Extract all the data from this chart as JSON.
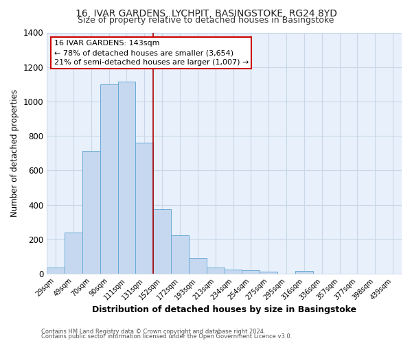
{
  "title": "16, IVAR GARDENS, LYCHPIT, BASINGSTOKE, RG24 8YD",
  "subtitle": "Size of property relative to detached houses in Basingstoke",
  "xlabel": "Distribution of detached houses by size in Basingstoke",
  "ylabel": "Number of detached properties",
  "bar_labels": [
    "29sqm",
    "49sqm",
    "70sqm",
    "90sqm",
    "111sqm",
    "131sqm",
    "152sqm",
    "172sqm",
    "193sqm",
    "213sqm",
    "234sqm",
    "254sqm",
    "275sqm",
    "295sqm",
    "316sqm",
    "336sqm",
    "357sqm",
    "377sqm",
    "398sqm",
    "439sqm"
  ],
  "bar_values": [
    35,
    240,
    715,
    1100,
    1115,
    760,
    375,
    225,
    90,
    35,
    25,
    20,
    12,
    0,
    15,
    0,
    0,
    0,
    0,
    0
  ],
  "bar_color": "#c5d8f0",
  "bar_edge_color": "#6aaad4",
  "ylim": [
    0,
    1400
  ],
  "yticks": [
    0,
    200,
    400,
    600,
    800,
    1000,
    1200,
    1400
  ],
  "vline_x": 5.5,
  "vline_color": "#aa0000",
  "annotation_title": "16 IVAR GARDENS: 143sqm",
  "annotation_line1": "← 78% of detached houses are smaller (3,654)",
  "annotation_line2": "21% of semi-detached houses are larger (1,007) →",
  "annotation_box_color": "#ffffff",
  "annotation_box_edge": "#cc0000",
  "footer1": "Contains HM Land Registry data © Crown copyright and database right 2024.",
  "footer2": "Contains public sector information licensed under the Open Government Licence v3.0.",
  "fig_bg_color": "#ffffff",
  "plot_bg_color": "#e8f0fb",
  "title_fontsize": 10,
  "subtitle_fontsize": 9,
  "grid_color": "#c8d8e8"
}
